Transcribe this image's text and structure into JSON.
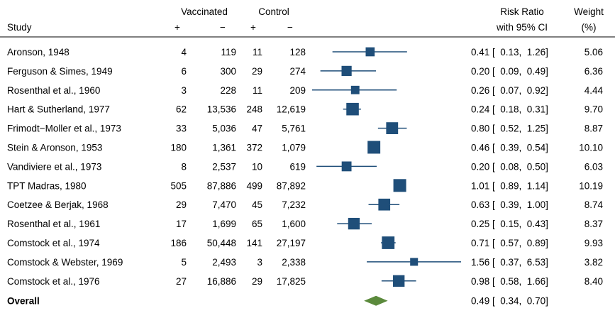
{
  "chart_data": {
    "type": "forest",
    "headers": {
      "study_col": "Study",
      "group1": "Vaccinated",
      "group2": "Control",
      "plus": "+",
      "minus": "−",
      "effect_line1": "Risk Ratio",
      "effect_line2": "with 95% CI",
      "weight_line1": "Weight",
      "weight_line2": "(%)"
    },
    "studies": [
      {
        "study": "Aronson, 1948",
        "vacc_pos": "4",
        "vacc_neg": "119",
        "ctrl_pos": "11",
        "ctrl_neg": "128",
        "rr": 0.41,
        "lo": 0.13,
        "hi": 1.26,
        "ci_text": "0.41 [  0.13,  1.26]",
        "weight": 5.06,
        "weight_text": "5.06"
      },
      {
        "study": "Ferguson & Simes, 1949",
        "vacc_pos": "6",
        "vacc_neg": "300",
        "ctrl_pos": "29",
        "ctrl_neg": "274",
        "rr": 0.2,
        "lo": 0.09,
        "hi": 0.49,
        "ci_text": "0.20 [  0.09,  0.49]",
        "weight": 6.36,
        "weight_text": "6.36"
      },
      {
        "study": "Rosenthal et al., 1960",
        "vacc_pos": "3",
        "vacc_neg": "228",
        "ctrl_pos": "11",
        "ctrl_neg": "209",
        "rr": 0.26,
        "lo": 0.07,
        "hi": 0.92,
        "ci_text": "0.26 [  0.07,  0.92]",
        "weight": 4.44,
        "weight_text": "4.44"
      },
      {
        "study": "Hart & Sutherland, 1977",
        "vacc_pos": "62",
        "vacc_neg": "13,536",
        "ctrl_pos": "248",
        "ctrl_neg": "12,619",
        "rr": 0.24,
        "lo": 0.18,
        "hi": 0.31,
        "ci_text": "0.24 [  0.18,  0.31]",
        "weight": 9.7,
        "weight_text": "9.70"
      },
      {
        "study": "Frimodt−Moller et al., 1973",
        "vacc_pos": "33",
        "vacc_neg": "5,036",
        "ctrl_pos": "47",
        "ctrl_neg": "5,761",
        "rr": 0.8,
        "lo": 0.52,
        "hi": 1.25,
        "ci_text": "0.80 [  0.52,  1.25]",
        "weight": 8.87,
        "weight_text": "8.87"
      },
      {
        "study": "Stein & Aronson, 1953",
        "vacc_pos": "180",
        "vacc_neg": "1,361",
        "ctrl_pos": "372",
        "ctrl_neg": "1,079",
        "rr": 0.46,
        "lo": 0.39,
        "hi": 0.54,
        "ci_text": "0.46 [  0.39,  0.54]",
        "weight": 10.1,
        "weight_text": "10.10"
      },
      {
        "study": "Vandiviere et al., 1973",
        "vacc_pos": "8",
        "vacc_neg": "2,537",
        "ctrl_pos": "10",
        "ctrl_neg": "619",
        "rr": 0.2,
        "lo": 0.08,
        "hi": 0.5,
        "ci_text": "0.20 [  0.08,  0.50]",
        "weight": 6.03,
        "weight_text": "6.03"
      },
      {
        "study": "TPT Madras, 1980",
        "vacc_pos": "505",
        "vacc_neg": "87,886",
        "ctrl_pos": "499",
        "ctrl_neg": "87,892",
        "rr": 1.01,
        "lo": 0.89,
        "hi": 1.14,
        "ci_text": "1.01 [  0.89,  1.14]",
        "weight": 10.19,
        "weight_text": "10.19"
      },
      {
        "study": "Coetzee & Berjak, 1968",
        "vacc_pos": "29",
        "vacc_neg": "7,470",
        "ctrl_pos": "45",
        "ctrl_neg": "7,232",
        "rr": 0.63,
        "lo": 0.39,
        "hi": 1.0,
        "ci_text": "0.63 [  0.39,  1.00]",
        "weight": 8.74,
        "weight_text": "8.74"
      },
      {
        "study": "Rosenthal et al., 1961",
        "vacc_pos": "17",
        "vacc_neg": "1,699",
        "ctrl_pos": "65",
        "ctrl_neg": "1,600",
        "rr": 0.25,
        "lo": 0.15,
        "hi": 0.43,
        "ci_text": "0.25 [  0.15,  0.43]",
        "weight": 8.37,
        "weight_text": "8.37"
      },
      {
        "study": "Comstock et al., 1974",
        "vacc_pos": "186",
        "vacc_neg": "50,448",
        "ctrl_pos": "141",
        "ctrl_neg": "27,197",
        "rr": 0.71,
        "lo": 0.57,
        "hi": 0.89,
        "ci_text": "0.71 [  0.57,  0.89]",
        "weight": 9.93,
        "weight_text": "9.93"
      },
      {
        "study": "Comstock & Webster, 1969",
        "vacc_pos": "5",
        "vacc_neg": "2,493",
        "ctrl_pos": "3",
        "ctrl_neg": "2,338",
        "rr": 1.56,
        "lo": 0.37,
        "hi": 6.53,
        "ci_text": "1.56 [  0.37,  6.53]",
        "weight": 3.82,
        "weight_text": "3.82"
      },
      {
        "study": "Comstock et al., 1976",
        "vacc_pos": "27",
        "vacc_neg": "16,886",
        "ctrl_pos": "29",
        "ctrl_neg": "17,825",
        "rr": 0.98,
        "lo": 0.58,
        "hi": 1.66,
        "ci_text": "0.98 [  0.58,  1.66]",
        "weight": 8.4,
        "weight_text": "8.40"
      }
    ],
    "overall": {
      "label": "Overall",
      "rr": 0.49,
      "lo": 0.34,
      "hi": 0.7,
      "ci_text": "0.49 [  0.34,  0.70]"
    },
    "x_scale": "log",
    "xlim": [
      0.07,
      6.53
    ],
    "grid": false,
    "colors": {
      "marker": "#1f4e79",
      "line": "#1f4e79",
      "overall": "#5b8a3c",
      "text": "#000000"
    }
  }
}
